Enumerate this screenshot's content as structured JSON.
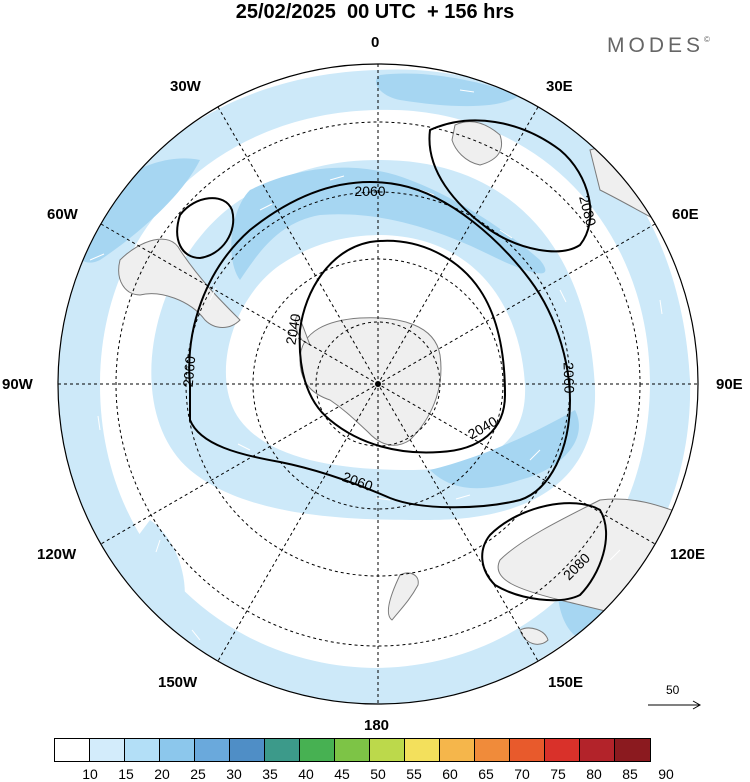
{
  "title": "25/02/2025  00 UTC  + 156 hrs",
  "brand": "MODES",
  "brand_mark": "©",
  "longitudes": {
    "top": "0",
    "lon_30w": "30W",
    "lon_30e": "30E",
    "lon_60w": "60W",
    "lon_60e": "60E",
    "lon_90w": "90W",
    "lon_90e": "90E",
    "lon_120w": "120W",
    "lon_120e": "120E",
    "lon_150w": "150W",
    "lon_150e": "150E",
    "bottom": "180"
  },
  "contour_labels": [
    "2060",
    "2080",
    "2040",
    "2060",
    "2060",
    "2040",
    "2060",
    "2080"
  ],
  "reference_vector_label": "50",
  "colorbar": {
    "ticks": [
      "10",
      "15",
      "20",
      "25",
      "30",
      "35",
      "40",
      "45",
      "50",
      "55",
      "60",
      "65",
      "70",
      "75",
      "80",
      "85",
      "90"
    ],
    "colors": [
      "#ffffff",
      "#d3ecfb",
      "#b3dff7",
      "#8cc7ec",
      "#6aa9dc",
      "#4f8ec6",
      "#3c9a8a",
      "#47b152",
      "#7dc446",
      "#bcd94b",
      "#f3e05c",
      "#f5b64b",
      "#f08b3a",
      "#e85a2c",
      "#d9312a",
      "#b3232a",
      "#8b1a1f"
    ]
  },
  "colors": {
    "wind_light": "#cde9f9",
    "wind_mid": "#a6d6f2",
    "land": "#efefef",
    "coast": "#7a7a7a"
  }
}
